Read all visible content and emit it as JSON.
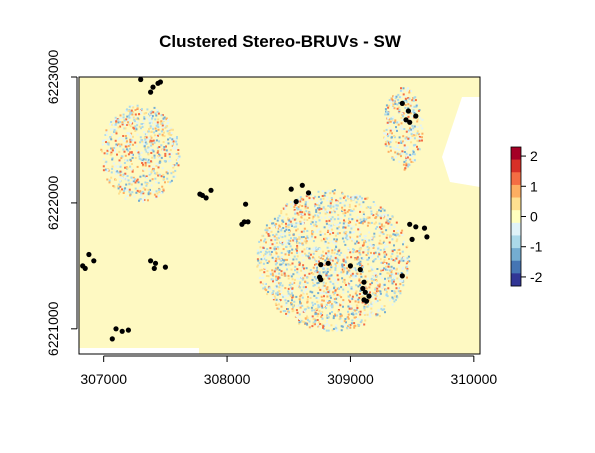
{
  "chart_data": {
    "type": "scatter",
    "title": "Clustered Stereo-BRUVs - SW",
    "xlabel": "",
    "ylabel": "",
    "xlim": [
      306800,
      310050
    ],
    "ylim": [
      6220800,
      6223000
    ],
    "x_ticks": [
      307000,
      308000,
      309000,
      310000
    ],
    "x_tick_labels": [
      "307000",
      "308000",
      "309000",
      "310000"
    ],
    "y_ticks": [
      6221000,
      6222000,
      6223000
    ],
    "y_tick_labels": [
      "6221000",
      "6222000",
      "6223000"
    ],
    "raster_background": "#fef9c2",
    "raster_patches": [
      {
        "cx": 307290,
        "cy": 6222400,
        "rx": 320,
        "ry": 390
      },
      {
        "cx": 308850,
        "cy": 6221550,
        "rx": 620,
        "ry": 560
      },
      {
        "cx": 309420,
        "cy": 6222600,
        "rx": 160,
        "ry": 330
      }
    ],
    "legend": {
      "placement": "right",
      "min": -2.3,
      "max": 2.3,
      "tick_values": [
        2,
        1,
        0,
        -1,
        -2
      ],
      "tick_labels": [
        "2",
        "1",
        "0",
        "-1",
        "-2"
      ],
      "colors": [
        "#a50026",
        "#d73027",
        "#f46d43",
        "#fdae61",
        "#fee090",
        "#ffffbf",
        "#e0f3f8",
        "#abd9e9",
        "#74add1",
        "#4575b4",
        "#313695"
      ]
    },
    "points": [
      [
        307300,
        6222980
      ],
      [
        307400,
        6222920
      ],
      [
        307440,
        6222950
      ],
      [
        307460,
        6222960
      ],
      [
        307380,
        6222880
      ],
      [
        309420,
        6222790
      ],
      [
        309470,
        6222730
      ],
      [
        309530,
        6222690
      ],
      [
        309450,
        6222660
      ],
      [
        309480,
        6222640
      ],
      [
        306830,
        6221500
      ],
      [
        306850,
        6221480
      ],
      [
        306880,
        6221590
      ],
      [
        306920,
        6221540
      ],
      [
        307420,
        6221520
      ],
      [
        307380,
        6221540
      ],
      [
        307500,
        6221490
      ],
      [
        307410,
        6221480
      ],
      [
        308150,
        6221990
      ],
      [
        308140,
        6221850
      ],
      [
        308120,
        6221830
      ],
      [
        308170,
        6221850
      ],
      [
        307780,
        6222070
      ],
      [
        307800,
        6222060
      ],
      [
        307830,
        6222040
      ],
      [
        307870,
        6222100
      ],
      [
        308520,
        6222110
      ],
      [
        308560,
        6222010
      ],
      [
        308610,
        6222140
      ],
      [
        308660,
        6222080
      ],
      [
        308760,
        6221510
      ],
      [
        308820,
        6221520
      ],
      [
        308750,
        6221410
      ],
      [
        308760,
        6221390
      ],
      [
        309000,
        6221500
      ],
      [
        309080,
        6221470
      ],
      [
        309110,
        6221370
      ],
      [
        309100,
        6221320
      ],
      [
        309120,
        6221290
      ],
      [
        309150,
        6221260
      ],
      [
        309110,
        6221230
      ],
      [
        309130,
        6221220
      ],
      [
        309420,
        6221420
      ],
      [
        309480,
        6221830
      ],
      [
        309530,
        6221810
      ],
      [
        309600,
        6221800
      ],
      [
        309620,
        6221730
      ],
      [
        309500,
        6221710
      ],
      [
        307100,
        6221000
      ],
      [
        307150,
        6220980
      ],
      [
        307200,
        6220990
      ],
      [
        307070,
        6220920
      ]
    ]
  }
}
